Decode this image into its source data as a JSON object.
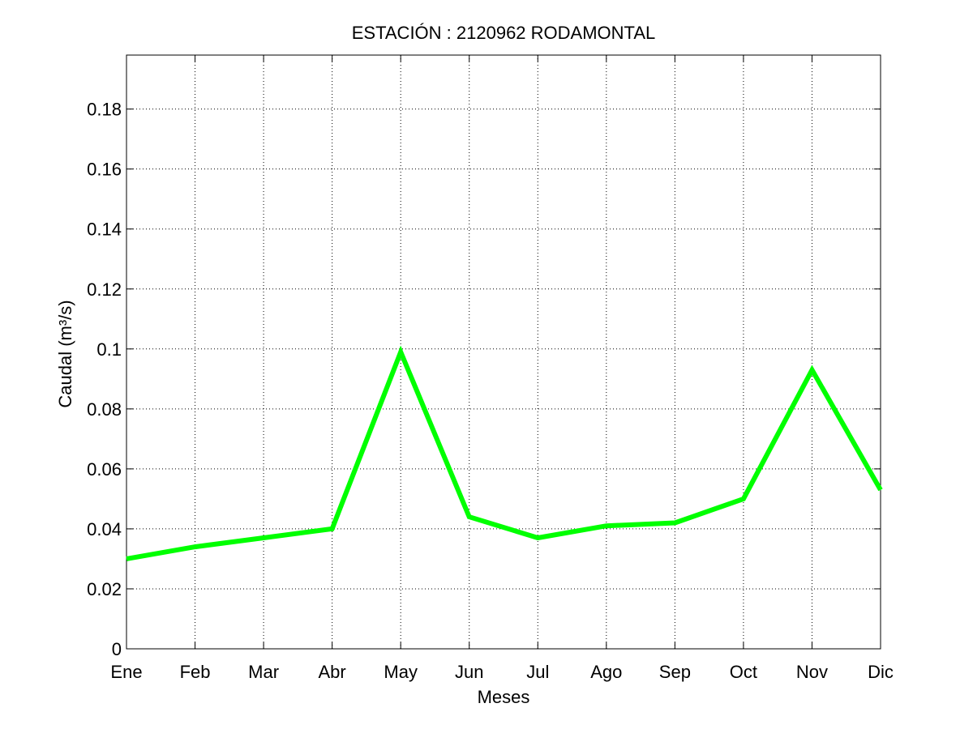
{
  "chart_data": {
    "type": "line",
    "title": "ESTACIÓN :  2120962  RODAMONTAL",
    "xlabel": "Meses",
    "ylabel": "Caudal (m³/s)",
    "categories": [
      "Ene",
      "Feb",
      "Mar",
      "Abr",
      "May",
      "Jun",
      "Jul",
      "Ago",
      "Sep",
      "Oct",
      "Nov",
      "Dic"
    ],
    "series": [
      {
        "values": [
          0.03,
          0.034,
          0.037,
          0.04,
          0.099,
          0.044,
          0.037,
          0.041,
          0.042,
          0.05,
          0.093,
          0.053
        ],
        "color": "#00ff00"
      }
    ],
    "ylim": [
      0,
      0.198
    ],
    "yticks": [
      0,
      0.02,
      0.04,
      0.06,
      0.08,
      0.1,
      0.12,
      0.14,
      0.16,
      0.18
    ],
    "ytick_labels": [
      "0",
      "0.02",
      "0.04",
      "0.06",
      "0.08",
      "0.1",
      "0.12",
      "0.14",
      "0.16",
      "0.18"
    ],
    "grid": true,
    "grid_style": "dotted"
  }
}
